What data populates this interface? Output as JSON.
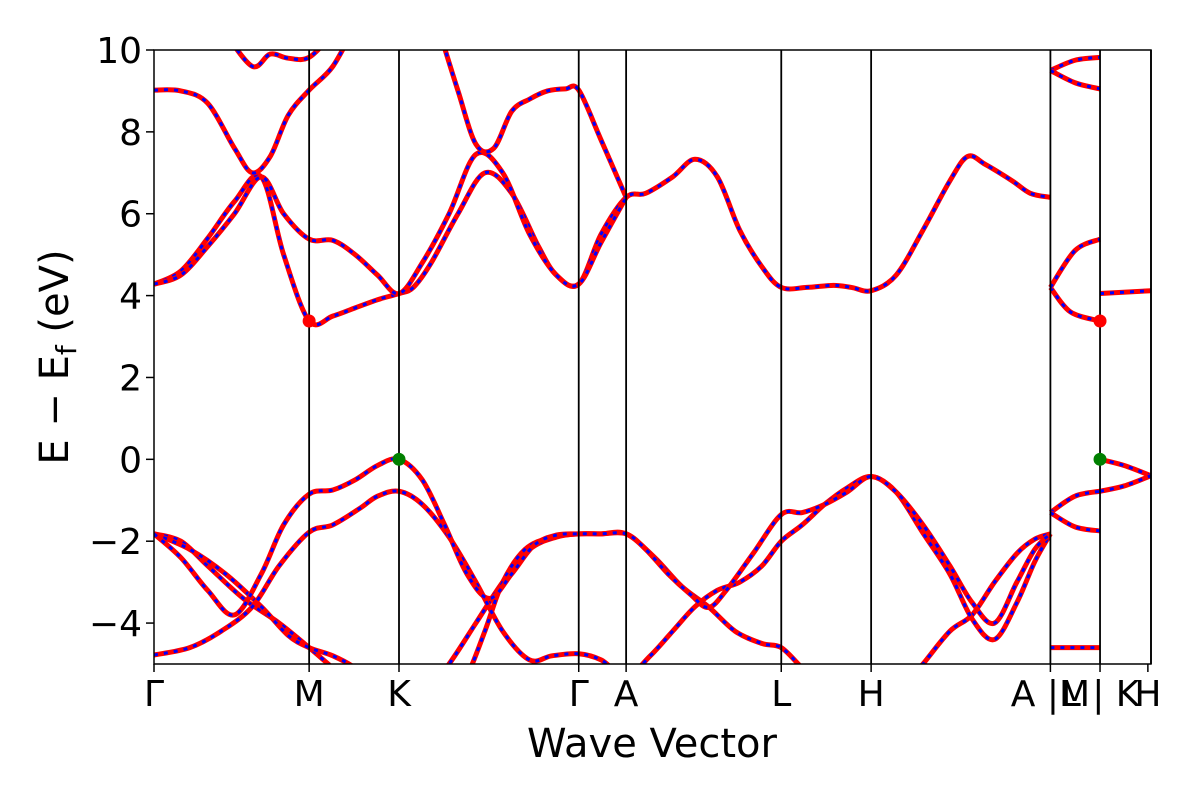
{
  "chart_data": {
    "type": "line",
    "xlabel": "Wave Vector",
    "ylabel_main": "E − E",
    "ylabel_sub": "f",
    "ylabel_tail": " (eV)",
    "ylim": [
      -5,
      10
    ],
    "yticks": [
      -4,
      -2,
      0,
      2,
      4,
      6,
      8,
      10
    ],
    "xlim": [
      0,
      22.3
    ],
    "kpoint_labels": [
      {
        "label": "Γ",
        "x": 0
      },
      {
        "label": "M",
        "x": 3.47
      },
      {
        "label": "K",
        "x": 5.48
      },
      {
        "label": "Γ",
        "x": 9.5
      },
      {
        "label": "A",
        "x": 10.56
      },
      {
        "label": "L",
        "x": 14.03
      },
      {
        "label": "H",
        "x": 16.04
      },
      {
        "label": "A |M",
        "x": 20.05
      },
      {
        "label": "L | K",
        "x": 21.16
      },
      {
        "label": "H",
        "x": 22.23
      }
    ],
    "vlines": [
      3.47,
      5.48,
      9.5,
      10.56,
      14.03,
      16.04,
      20.05,
      21.16,
      22.3
    ],
    "colors": {
      "band": "#ff0000",
      "dash": "#0000ff",
      "cbm": "#ff0000",
      "vbm": "#008000"
    },
    "markers": [
      {
        "name": "cbm",
        "x": 3.47,
        "y": 3.38
      },
      {
        "name": "cbm",
        "x": 21.16,
        "y": 3.38
      },
      {
        "name": "vbm",
        "x": 5.48,
        "y": 0
      },
      {
        "name": "vbm",
        "x": 21.16,
        "y": 0
      }
    ],
    "bands": [
      {
        "name": "v1",
        "x": [
          0,
          0.6,
          1.2,
          2.0,
          2.8,
          3.47,
          4.0,
          4.5,
          5.0,
          5.48,
          6.0,
          6.6,
          7.2,
          7.8,
          8.4,
          9.0,
          9.5,
          10.0,
          10.56,
          11.2,
          11.8,
          12.4,
          13.0,
          13.6,
          14.03,
          14.5,
          15.0,
          15.5,
          16.04,
          16.6,
          17.2,
          17.8,
          18.3,
          18.8,
          19.3,
          19.7,
          20.05
        ],
        "y": [
          -1.82,
          -2.0,
          -2.6,
          -3.4,
          -4.0,
          -4.6,
          -5.1,
          -5.6,
          -6.0,
          -6.2,
          -5.8,
          -5.0,
          -4.0,
          -3.0,
          -2.2,
          -1.9,
          -1.82,
          -1.82,
          -1.82,
          -2.4,
          -3.1,
          -3.6,
          -4.2,
          -4.5,
          -4.6,
          -5.1,
          -5.6,
          -6.0,
          -6.2,
          -5.8,
          -5.0,
          -4.2,
          -3.8,
          -3.0,
          -2.3,
          -1.95,
          -1.82
        ]
      },
      {
        "name": "v2",
        "x": [
          0,
          0.8,
          1.6,
          2.4,
          3.0,
          3.47,
          4.0,
          4.5,
          5.0,
          5.48,
          6.0,
          6.6,
          7.0,
          7.4,
          7.8,
          8.3,
          8.9,
          9.5
        ],
        "y": [
          -1.82,
          -2.2,
          -2.8,
          -3.6,
          -4.3,
          -4.6,
          -4.8,
          -5.1,
          -5.6,
          -6.0,
          -6.5,
          -6.0,
          -5.3,
          -4.2,
          -3.0,
          -2.2,
          -1.9,
          -1.82
        ]
      },
      {
        "name": "v3",
        "x": [
          0,
          0.8,
          1.5,
          2.2,
          2.8,
          3.47,
          4.0,
          4.6,
          5.0,
          5.48,
          6.0,
          6.6,
          7.2,
          7.8,
          8.4,
          8.9,
          9.5,
          10.0,
          10.56,
          11.1,
          11.6,
          12.1,
          12.6,
          13.1,
          13.6,
          14.03,
          14.5,
          15.0,
          15.5,
          16.04,
          16.6,
          17.2,
          17.8,
          18.3,
          18.8,
          19.3,
          19.7,
          20.05
        ],
        "y": [
          -4.78,
          -4.6,
          -4.2,
          -3.6,
          -2.6,
          -1.78,
          -1.6,
          -1.2,
          -0.9,
          -0.78,
          -1.1,
          -1.9,
          -3.0,
          -4.2,
          -4.9,
          -4.8,
          -4.75,
          -4.9,
          -5.3,
          -4.8,
          -4.2,
          -3.6,
          -3.2,
          -3.0,
          -2.6,
          -2.0,
          -1.6,
          -1.1,
          -0.7,
          -0.42,
          -0.8,
          -1.8,
          -2.8,
          -3.9,
          -4.4,
          -3.5,
          -2.5,
          -1.82
        ]
      },
      {
        "name": "v_top",
        "x": [
          0,
          0.6,
          1.2,
          1.8,
          2.4,
          2.9,
          3.47,
          4.0,
          4.5,
          5.0,
          5.48,
          6.0,
          6.5,
          7.0,
          7.5,
          8.0,
          8.5,
          9.0,
          9.5,
          10.0,
          10.56,
          11.0,
          11.5,
          12.0,
          12.4,
          12.8,
          13.4,
          14.03,
          14.5,
          15.0,
          15.5,
          16.04,
          16.6,
          17.2,
          17.8,
          18.3,
          18.8,
          19.3,
          19.7,
          20.05
        ],
        "y": [
          -1.82,
          -2.4,
          -3.2,
          -3.8,
          -2.8,
          -1.6,
          -0.85,
          -0.75,
          -0.5,
          -0.15,
          0.0,
          -0.5,
          -1.6,
          -2.8,
          -3.4,
          -2.8,
          -2.1,
          -1.85,
          -1.82,
          -1.82,
          -1.82,
          -2.2,
          -2.8,
          -3.3,
          -3.62,
          -3.2,
          -2.3,
          -1.35,
          -1.3,
          -1.1,
          -0.8,
          -0.42,
          -0.8,
          -1.6,
          -2.6,
          -3.5,
          -4.0,
          -3.0,
          -2.2,
          -1.82
        ]
      },
      {
        "name": "c1",
        "x": [
          0,
          0.6,
          1.2,
          1.8,
          2.4,
          2.9,
          3.47,
          4.0,
          4.5,
          5.0,
          5.48,
          5.8,
          6.2,
          6.8,
          7.4,
          8.0,
          8.6,
          9.0,
          9.5,
          10.0,
          10.56,
          11.0,
          11.6,
          12.1,
          12.6,
          13.1,
          13.6,
          14.03,
          14.6,
          15.2,
          15.6,
          16.04,
          16.6,
          17.2,
          17.8,
          18.2,
          18.6,
          19.2,
          19.6,
          20.05
        ],
        "y": [
          4.28,
          4.6,
          5.4,
          6.3,
          6.9,
          5.0,
          3.38,
          3.5,
          3.7,
          3.9,
          4.05,
          4.2,
          4.8,
          6.0,
          7.0,
          6.5,
          5.2,
          4.5,
          4.28,
          5.5,
          6.4,
          6.5,
          6.9,
          7.33,
          6.9,
          5.6,
          4.7,
          4.2,
          4.2,
          4.25,
          4.2,
          4.12,
          4.5,
          5.6,
          6.8,
          7.4,
          7.2,
          6.8,
          6.5,
          6.4
        ]
      },
      {
        "name": "c2",
        "x": [
          0,
          0.6,
          1.2,
          1.8,
          2.4,
          2.9,
          3.47,
          4.0,
          4.5,
          5.0,
          5.48,
          6.0,
          6.6,
          7.2,
          7.8,
          8.4,
          9.0,
          9.5,
          10.0,
          10.56
        ],
        "y": [
          4.28,
          4.5,
          5.2,
          6.0,
          6.9,
          6.0,
          5.38,
          5.35,
          5.0,
          4.5,
          4.05,
          4.8,
          6.0,
          7.45,
          7.0,
          5.5,
          4.5,
          4.28,
          5.3,
          6.4
        ]
      },
      {
        "name": "c3",
        "x": [
          0,
          0.6,
          1.2,
          1.8,
          2.2,
          2.6,
          3.0,
          3.47,
          4.0,
          4.5
        ],
        "y": [
          9.02,
          9.0,
          8.7,
          7.6,
          7.0,
          7.4,
          8.4,
          9.02,
          9.6,
          10.6
        ]
      },
      {
        "name": "c4",
        "x": [
          6.4,
          6.8,
          7.2,
          7.6,
          8.0,
          8.4,
          8.8,
          9.2,
          9.5,
          10.0,
          10.56
        ],
        "y": [
          10.4,
          9.0,
          7.7,
          7.6,
          8.5,
          8.8,
          9.0,
          9.05,
          9.02,
          7.8,
          6.4
        ]
      },
      {
        "name": "c5",
        "x": [
          1.6,
          2.2,
          2.6,
          3.0,
          3.47,
          4.0
        ],
        "y": [
          10.4,
          9.6,
          9.9,
          9.8,
          9.82,
          10.4
        ]
      }
    ],
    "inset_bands": [
      {
        "name": "i1",
        "x": [
          20.05,
          20.6,
          21.16
        ],
        "y": [
          -1.3,
          -0.9,
          -0.78
        ]
      },
      {
        "name": "i2",
        "x": [
          20.05,
          20.6,
          21.16
        ],
        "y": [
          -1.3,
          -1.65,
          -1.75
        ]
      },
      {
        "name": "i3",
        "x": [
          20.05,
          20.5,
          21.16
        ],
        "y": [
          4.2,
          3.6,
          3.38
        ]
      },
      {
        "name": "i4",
        "x": [
          20.05,
          20.6,
          21.16
        ],
        "y": [
          4.2,
          5.1,
          5.38
        ]
      },
      {
        "name": "i5",
        "x": [
          20.05,
          20.6,
          21.16
        ],
        "y": [
          9.5,
          9.75,
          9.82
        ]
      },
      {
        "name": "i6",
        "x": [
          20.05,
          20.6,
          21.16
        ],
        "y": [
          9.5,
          9.2,
          9.05
        ]
      },
      {
        "name": "i7",
        "x": [
          20.05,
          21.16
        ],
        "y": [
          -4.6,
          -4.6
        ]
      },
      {
        "name": "i8",
        "x": [
          21.16,
          21.7,
          22.3
        ],
        "y": [
          0.0,
          -0.15,
          -0.4
        ]
      },
      {
        "name": "i9",
        "x": [
          21.16,
          21.7,
          22.3
        ],
        "y": [
          -0.78,
          -0.65,
          -0.4
        ]
      },
      {
        "name": "i10",
        "x": [
          21.16,
          22.3
        ],
        "y": [
          4.05,
          4.12
        ]
      }
    ]
  }
}
